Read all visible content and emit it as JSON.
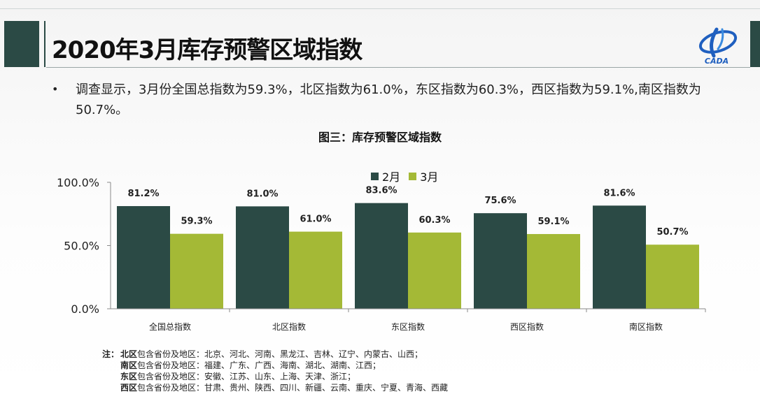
{
  "header": {
    "title": "2020年3月库存预警区域指数",
    "logo_text": "CADA"
  },
  "summary": {
    "bullet": "•",
    "text": "调查显示，3月份全国总指数为59.3%，北区指数为61.0%，东区指数为60.3%，西区指数为59.1%,南区指数为50.7%。"
  },
  "colors": {
    "feb": "#2b4a45",
    "mar": "#a4b936",
    "axis": "#8a8a8a"
  },
  "chart_data": {
    "type": "bar",
    "title": "图三：库存预警区域指数",
    "categories": [
      "全国总指数",
      "北区指数",
      "东区指数",
      "西区指数",
      "南区指数"
    ],
    "series": [
      {
        "name": "2月",
        "values": [
          81.2,
          81.0,
          83.6,
          75.6,
          81.6
        ],
        "labels": [
          "81.2%",
          "81.0%",
          "83.6%",
          "75.6%",
          "81.6%"
        ]
      },
      {
        "name": "3月",
        "values": [
          59.3,
          61.0,
          60.3,
          59.1,
          50.7
        ],
        "labels": [
          "59.3%",
          "61.0%",
          "60.3%",
          "59.1%",
          "50.7%"
        ]
      }
    ],
    "ylim": [
      0,
      100
    ],
    "yticks": [
      0,
      50,
      100
    ],
    "ytick_labels": [
      "0.0%",
      "50.0%",
      "100.0%"
    ],
    "grid": false,
    "legend": "top-center"
  },
  "notes": {
    "prefix": "注：",
    "rows": [
      {
        "region": "北区",
        "text": "包含省份及地区：北京、河北、河南、黑龙江、吉林、辽宁、内蒙古、山西；"
      },
      {
        "region": "南区",
        "text": "包含省份及地区：福建、广东、广西、海南、湖北、湖南、江西；"
      },
      {
        "region": "东区",
        "text": "包含省份及地区：安徽、江苏、山东、上海、天津、浙江；"
      },
      {
        "region": "西区",
        "text": "包含省份及地区：甘肃、贵州、陕西、四川、新疆、云南、重庆、宁夏、青海、西藏"
      }
    ]
  }
}
